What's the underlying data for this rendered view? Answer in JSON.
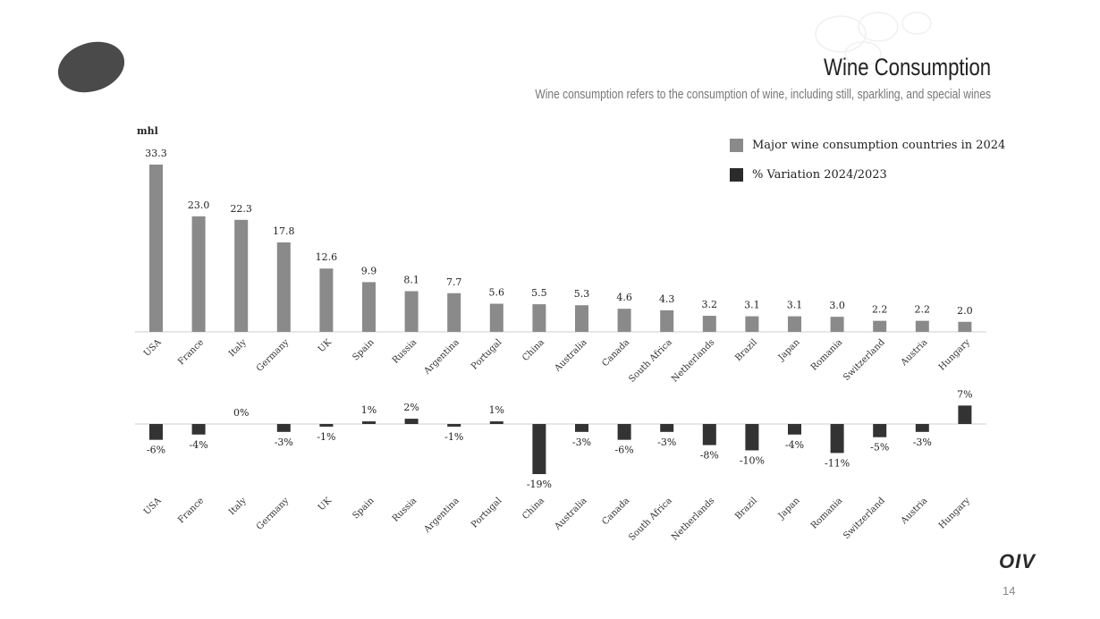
{
  "slide": {
    "title": "Wine Consumption",
    "subtitle": "Wine consumption refers to the consumption of wine, including still, sparkling, and special wines",
    "unit": "mhl",
    "brand": "OIV",
    "page_number": "14"
  },
  "colors": {
    "consumption_bar": "#8a8a8a",
    "variation_bar": "#333333",
    "axis": "#cfcfcf",
    "logo": "#4a4a4a"
  },
  "legend": [
    {
      "label": "Major wine consumption countries in 2024",
      "color": "#8a8a8a"
    },
    {
      "label": "% Variation 2024/2023",
      "color": "#2b2b2b"
    }
  ],
  "chart_data": [
    {
      "type": "bar",
      "categories": [
        "USA",
        "France",
        "Italy",
        "Germany",
        "UK",
        "Spain",
        "Russia",
        "Argentina",
        "Portugal",
        "China",
        "Australia",
        "Canada",
        "South Africa",
        "Netherlands",
        "Brazil",
        "Japan",
        "Romania",
        "Switzerland",
        "Austria",
        "Hungary"
      ],
      "series": [
        {
          "name": "Major wine consumption countries in 2024",
          "values": [
            33.3,
            23.0,
            22.3,
            17.8,
            12.6,
            9.9,
            8.1,
            7.7,
            5.6,
            5.5,
            5.3,
            4.6,
            4.3,
            3.2,
            3.1,
            3.1,
            3.0,
            2.2,
            2.2,
            2.0
          ]
        }
      ],
      "value_labels": [
        "33.3",
        "23.0",
        "22.3",
        "17.8",
        "12.6",
        "9.9",
        "8.1",
        "7.7",
        "5.6",
        "5.5",
        "5.3",
        "4.6",
        "4.3",
        "3.2",
        "3.1",
        "3.1",
        "3.0",
        "2.2",
        "2.2",
        "2.0"
      ],
      "ylabel": "mhl",
      "ylim": [
        0,
        35
      ]
    },
    {
      "type": "bar",
      "categories": [
        "USA",
        "France",
        "Italy",
        "Germany",
        "UK",
        "Spain",
        "Russia",
        "Argentina",
        "Portugal",
        "China",
        "Australia",
        "Canada",
        "South Africa",
        "Netherlands",
        "Brazil",
        "Japan",
        "Romania",
        "Switzerland",
        "Austria",
        "Hungary"
      ],
      "series": [
        {
          "name": "% Variation 2024/2023",
          "values": [
            -6,
            -4,
            0,
            -3,
            -1,
            1,
            2,
            -1,
            1,
            -19,
            -3,
            -6,
            -3,
            -8,
            -10,
            -4,
            -11,
            -5,
            -3,
            7
          ]
        }
      ],
      "value_labels": [
        "-6%",
        "-4%",
        "0%",
        "-3%",
        "-1%",
        "1%",
        "2%",
        "-1%",
        "1%",
        "-19%",
        "-3%",
        "-6%",
        "-3%",
        "-8%",
        "-10%",
        "-4%",
        "-11%",
        "-5%",
        "-3%",
        "7%"
      ],
      "ylim": [
        -20,
        8
      ]
    }
  ]
}
